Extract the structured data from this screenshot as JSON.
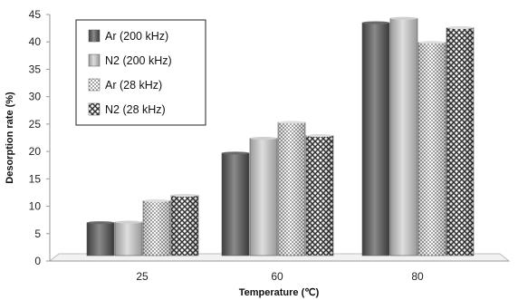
{
  "chart_data": {
    "type": "bar",
    "categories": [
      "25",
      "60",
      "80"
    ],
    "series": [
      {
        "name": "Ar (200 kHz)",
        "values": [
          7.0,
          19.7,
          43.5
        ],
        "color": "#5a5a5a",
        "pattern": "solid-dark"
      },
      {
        "name": "N2 (200 kHz)",
        "values": [
          7.1,
          22.4,
          44.3
        ],
        "color": "#b4b4b4",
        "pattern": "solid-light"
      },
      {
        "name": "Ar (28 kHz)",
        "values": [
          11.0,
          25.3,
          39.9
        ],
        "color": "#888888",
        "pattern": "dots"
      },
      {
        "name": "N2 (28 kHz)",
        "values": [
          12.0,
          22.9,
          42.6
        ],
        "color": "#555555",
        "pattern": "lattice"
      }
    ],
    "xlabel": "Temperature (℃)",
    "ylabel": "Desorption rate (%)",
    "ylim": [
      0,
      45
    ],
    "yticks": [
      "0",
      "5",
      "10",
      "15",
      "20",
      "25",
      "30",
      "35",
      "40",
      "45"
    ],
    "grid": false,
    "legend": "top-left"
  }
}
